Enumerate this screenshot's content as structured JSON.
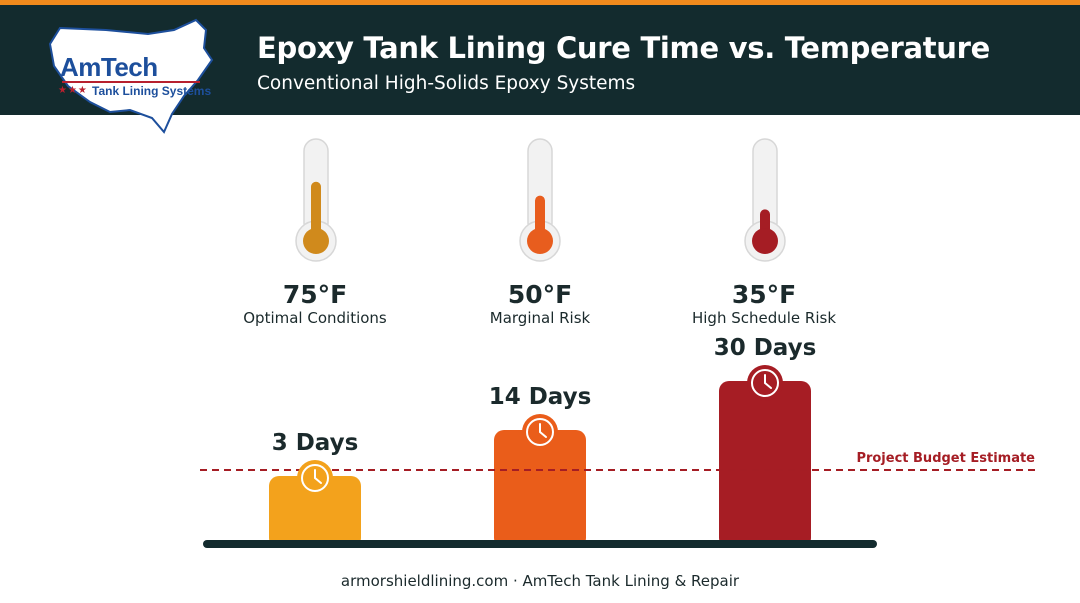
{
  "header": {
    "title": "Epoxy Tank Lining Cure Time vs. Temperature",
    "subtitle": "Conventional High-Solids Epoxy Systems"
  },
  "logo": {
    "wordmark": "AmTech",
    "stars": "★★★",
    "tagline": "Tank Lining Systems"
  },
  "temperatures": [
    {
      "value": "75°F",
      "label": "Optimal Conditions",
      "color": "#d08a1c",
      "fill_level": 0.6
    },
    {
      "value": "50°F",
      "label": "Marginal Risk",
      "color": "#e85d1e",
      "fill_level": 0.45
    },
    {
      "value": "35°F",
      "label": "High Schedule Risk",
      "color": "#a51d24",
      "fill_level": 0.3
    }
  ],
  "chart_data": {
    "type": "bar",
    "categories": [
      "75°F",
      "50°F",
      "35°F"
    ],
    "values": [
      3,
      14,
      30
    ],
    "data_labels": [
      "3 Days",
      "14 Days",
      "30 Days"
    ],
    "colors": [
      "#f3a21c",
      "#ea5d1a",
      "#a61d24"
    ],
    "reference_line": {
      "label": "Project Budget Estimate",
      "color": "#a51d24"
    },
    "title": "",
    "xlabel": "",
    "ylabel": "",
    "grid": false,
    "legend": "none"
  },
  "footer": {
    "text": "armorshieldlining.com · AmTech Tank Lining & Repair"
  },
  "colors": {
    "header_bg": "#132b2e",
    "accent_stripe": "#f08a1c",
    "baseline": "#132b2e"
  }
}
